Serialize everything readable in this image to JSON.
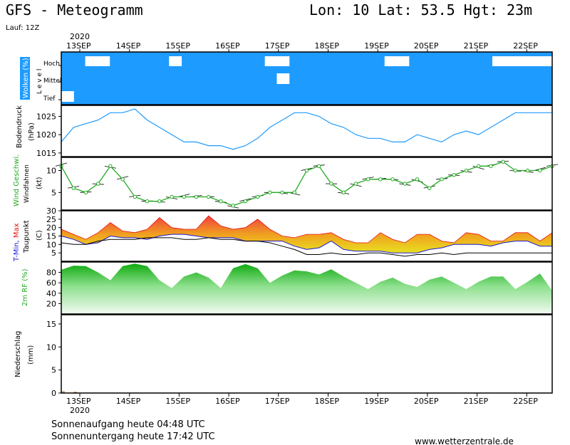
{
  "header": {
    "title": "GFS - Meteogramm",
    "coords": "Lon: 10 Lat: 53.5 Hgt: 23m",
    "run": "Lauf: 12Z"
  },
  "year_label": "2020",
  "dates": [
    "13SEP",
    "14SEP",
    "15SEP",
    "16SEP",
    "17SEP",
    "18SEP",
    "19SEP",
    "20SEP",
    "21SEP",
    "22SEP"
  ],
  "footer": {
    "sunrise": "Sonnenaufgang heute 04:48 UTC",
    "sunset": "Sonnenuntergang heute 17:42 UTC",
    "site": "www.wetterzentrale.de"
  },
  "colors": {
    "cloud": "#1e9bff",
    "pressure": "#1e9bff",
    "wind": "#22aa22",
    "tmin": "#1a1ad6",
    "tmax": "#e81010",
    "dew": "#000000",
    "rh": "#22c822",
    "precip": "#000000"
  },
  "chart_data": [
    {
      "type": "heatmap",
      "panel": "clouds",
      "ylabel": "Wolken (%)",
      "ylabel2": "L e v e l",
      "levels": [
        "Hoch",
        "Mittel",
        "Tief"
      ],
      "note": "cloud cover by level, 1 = cloudy, 0 = clear, per 6h step",
      "hoch": [
        1,
        1,
        0,
        0,
        1,
        1,
        1,
        1,
        1,
        0,
        1,
        1,
        1,
        1,
        1,
        1,
        1,
        0,
        0,
        1,
        1,
        1,
        1,
        1,
        1,
        1,
        1,
        0,
        0,
        1,
        1,
        1,
        1,
        1,
        1,
        1,
        0,
        0,
        0,
        0,
        0
      ],
      "mittel": [
        1,
        1,
        1,
        1,
        1,
        1,
        1,
        1,
        1,
        1,
        1,
        1,
        1,
        1,
        1,
        1,
        1,
        1,
        0,
        1,
        1,
        1,
        1,
        1,
        1,
        1,
        1,
        1,
        1,
        1,
        1,
        1,
        1,
        1,
        1,
        1,
        1,
        1,
        1,
        1,
        1
      ],
      "tief": [
        0,
        1,
        1,
        1,
        1,
        1,
        1,
        1,
        1,
        1,
        1,
        1,
        1,
        1,
        1,
        1,
        1,
        1,
        1,
        1,
        1,
        1,
        1,
        1,
        1,
        1,
        1,
        1,
        1,
        1,
        1,
        1,
        1,
        1,
        1,
        1,
        1,
        1,
        1,
        1,
        1
      ]
    },
    {
      "type": "line",
      "panel": "pressure",
      "ylabel": "Bodendruck",
      "ylabel2": "(hPa)",
      "ylim": [
        1014,
        1028
      ],
      "yticks": [
        1015,
        1020,
        1025
      ],
      "values": [
        1018,
        1022,
        1023,
        1024,
        1026,
        1026,
        1027,
        1024,
        1022,
        1020,
        1018,
        1018,
        1017,
        1017,
        1016,
        1017,
        1019,
        1022,
        1024,
        1026,
        1026,
        1025,
        1023,
        1022,
        1020,
        1019,
        1019,
        1018,
        1018,
        1020,
        1019,
        1018,
        1020,
        1021,
        1020,
        1022,
        1024,
        1026,
        1026,
        1026,
        1026
      ]
    },
    {
      "type": "line",
      "panel": "wind",
      "ylabel": "Wind Geschwi.",
      "ylabel2": "Windfahnen",
      "ylabel3": "(kt)",
      "ylim": [
        1,
        13
      ],
      "yticks": [
        5,
        10
      ],
      "values": [
        11,
        6,
        5,
        7,
        11,
        8,
        4,
        3,
        3,
        4,
        4,
        4,
        4,
        3,
        2,
        3,
        4,
        5,
        5,
        5,
        10,
        11,
        7,
        5,
        7,
        8,
        8,
        8,
        7,
        8,
        6,
        8,
        9,
        10,
        11,
        11,
        12,
        10,
        10,
        10,
        11
      ]
    },
    {
      "type": "area",
      "panel": "temperature",
      "ylabel": "T-Min, Max",
      "ylabel2": "Taupunkt",
      "ylabel3": "(C)",
      "ylim": [
        0,
        30
      ],
      "yticks": [
        5,
        10,
        15,
        20,
        25,
        30
      ],
      "series": [
        {
          "name": "T-Min",
          "values": [
            15,
            13,
            10,
            11,
            15,
            14,
            14,
            13,
            15,
            16,
            16,
            15,
            14,
            14,
            14,
            12,
            12,
            12,
            12,
            9,
            7,
            8,
            12,
            7,
            6,
            6,
            6,
            5,
            5,
            5,
            7,
            8,
            10,
            10,
            10,
            9,
            11,
            12,
            12,
            9,
            9
          ]
        },
        {
          "name": "Max",
          "values": [
            19,
            16,
            13,
            17,
            23,
            18,
            17,
            19,
            26,
            20,
            19,
            19,
            27,
            21,
            19,
            20,
            25,
            19,
            15,
            14,
            16,
            16,
            17,
            13,
            11,
            11,
            17,
            13,
            11,
            16,
            16,
            12,
            11,
            17,
            16,
            12,
            12,
            17,
            17,
            12,
            17
          ]
        },
        {
          "name": "Taupunkt",
          "values": [
            11,
            10,
            10,
            12,
            13,
            13,
            13,
            14,
            14,
            14,
            13,
            13,
            14,
            13,
            13,
            12,
            12,
            11,
            9,
            7,
            4,
            4,
            5,
            4,
            4,
            5,
            5,
            4,
            3,
            4,
            4,
            5,
            4,
            5,
            5,
            5,
            5,
            5,
            5,
            5,
            5
          ]
        }
      ]
    },
    {
      "type": "area",
      "panel": "humidity",
      "ylabel": "2m RF (%)",
      "ylim": [
        0,
        100
      ],
      "yticks": [
        20,
        40,
        60,
        80
      ],
      "values": [
        85,
        93,
        92,
        80,
        65,
        92,
        97,
        92,
        65,
        50,
        72,
        80,
        70,
        50,
        88,
        96,
        88,
        60,
        74,
        84,
        82,
        76,
        86,
        72,
        60,
        48,
        62,
        70,
        58,
        52,
        66,
        72,
        60,
        48,
        62,
        72,
        72,
        48,
        62,
        78,
        45
      ]
    },
    {
      "type": "bar",
      "panel": "precipitation",
      "ylabel": "Niederschlag",
      "ylabel2": "(mm)",
      "ylim": [
        0,
        17
      ],
      "yticks": [
        0,
        5,
        10,
        15
      ],
      "values": [
        0.2,
        0.1,
        0,
        0,
        0,
        0,
        0,
        0,
        0,
        0,
        0,
        0,
        0,
        0,
        0,
        0,
        0,
        0,
        0,
        0,
        0,
        0,
        0,
        0,
        0,
        0,
        0,
        0,
        0,
        0,
        0,
        0,
        0,
        0,
        0,
        0,
        0,
        0,
        0,
        0,
        0
      ]
    }
  ]
}
